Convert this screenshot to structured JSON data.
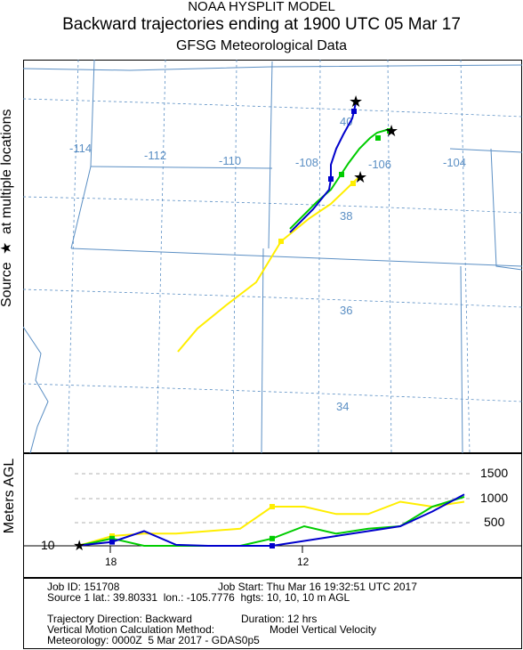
{
  "header": {
    "line1": "NOAA HYSPLIT MODEL",
    "line2": "Backward trajectories ending at 1900 UTC 05 Mar 17",
    "line3": "GFSG Meteorological Data"
  },
  "side_labels": {
    "source_prefix": "Source",
    "source_star": "★",
    "source_suffix": "at multiple locations",
    "altitude_axis": "Meters AGL"
  },
  "map": {
    "longitude_labels": [
      "-114",
      "-112",
      "-110",
      "-108",
      "-106",
      "-104"
    ],
    "latitude_labels": [
      "40",
      "38",
      "36",
      "34"
    ],
    "colors": {
      "grid": "#5b8fc4",
      "border": "#5b8fc4",
      "label": "#5b8fc4"
    }
  },
  "trajectories": [
    {
      "color": "#0000cc",
      "source": {
        "lat": 39.80331,
        "lon": -105.7776,
        "height_m": 10
      },
      "hourly_markers": "square",
      "heights_m": [
        10,
        80,
        300,
        20,
        0,
        0,
        0,
        100,
        200,
        300,
        400,
        700,
        1050
      ]
    },
    {
      "color": "#00cc00",
      "source": {
        "lat": 39.5,
        "lon": -104.9,
        "height_m": 10
      },
      "hourly_markers": "square",
      "heights_m": [
        10,
        150,
        0,
        0,
        0,
        0,
        150,
        400,
        250,
        350,
        400,
        800,
        1000
      ]
    },
    {
      "color": "#ffee00",
      "source": {
        "lat": 38.8,
        "lon": -105.5,
        "height_m": 10
      },
      "hourly_markers": "square",
      "heights_m": [
        10,
        200,
        250,
        250,
        300,
        350,
        800,
        800,
        650,
        650,
        900,
        800,
        900
      ]
    }
  ],
  "altitude_chart": {
    "y_ticks": [
      "500",
      "1000",
      "1500"
    ],
    "source_height_label": "10",
    "x_tick_labels": [
      "18",
      "12"
    ]
  },
  "info": {
    "job_id": "Job ID: 151708",
    "job_start": "Job Start: Thu Mar 16 19:32:51 UTC 2017",
    "source_line": "Source 1 lat.: 39.80331  lon.: -105.7776  hgts: 10, 10, 10 m AGL",
    "direction": "Trajectory Direction: Backward",
    "duration": "Duration: 12 hrs",
    "vertical_motion": "Vertical Motion Calculation Method:",
    "vertical_motion_value": "Model Vertical Velocity",
    "meteorology": "Meteorology: 0000Z  5 Mar 2017 - GDAS0p5"
  }
}
